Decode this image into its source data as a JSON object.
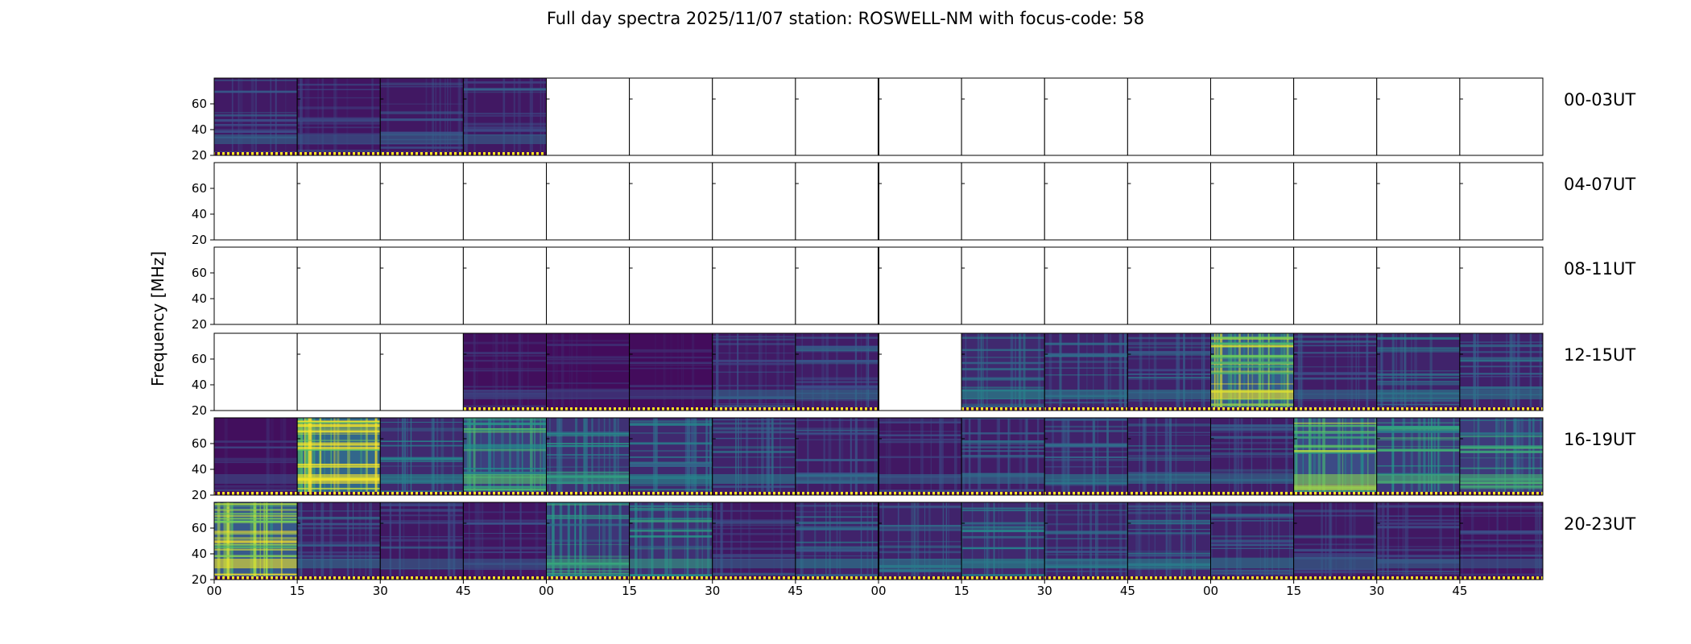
{
  "chart_data": {
    "type": "heatmap",
    "title": "Full day spectra 2025/11/07 station: ROSWELL-NM with focus-code: 58",
    "ylabel": "Frequency [MHz]",
    "xlabel": "",
    "y_ticks": [
      "20",
      "40",
      "60"
    ],
    "ylim": [
      20,
      80
    ],
    "x_ticks": [
      "00",
      "15",
      "30",
      "45",
      "00",
      "15",
      "30",
      "45",
      "00",
      "15",
      "30",
      "45",
      "00",
      "15",
      "30",
      "45"
    ],
    "colormap": [
      "#440154",
      "#3b528b",
      "#21918c",
      "#5ec962",
      "#fde725"
    ],
    "rows": [
      {
        "label": "00-03UT",
        "panels": [
          0.22,
          0.18,
          0.2,
          0.2,
          null,
          null,
          null,
          null,
          null,
          null,
          null,
          null,
          null,
          null,
          null,
          null
        ]
      },
      {
        "label": "04-07UT",
        "panels": [
          null,
          null,
          null,
          null,
          null,
          null,
          null,
          null,
          null,
          null,
          null,
          null,
          null,
          null,
          null,
          null
        ]
      },
      {
        "label": "08-11UT",
        "panels": [
          null,
          null,
          null,
          null,
          null,
          null,
          null,
          null,
          null,
          null,
          null,
          null,
          null,
          null,
          null,
          null
        ]
      },
      {
        "label": "12-15UT",
        "panels": [
          null,
          null,
          null,
          0.12,
          0.1,
          0.1,
          0.22,
          0.25,
          null,
          0.35,
          0.3,
          0.28,
          0.8,
          0.25,
          0.3,
          0.28
        ]
      },
      {
        "label": "16-19UT",
        "panels": [
          0.12,
          0.95,
          0.35,
          0.55,
          0.42,
          0.35,
          0.3,
          0.25,
          0.2,
          0.25,
          0.3,
          0.28,
          0.25,
          0.65,
          0.5,
          0.5
        ]
      },
      {
        "label": "20-23UT",
        "panels": [
          0.8,
          0.25,
          0.2,
          0.18,
          0.45,
          0.42,
          0.2,
          0.3,
          0.3,
          0.35,
          0.3,
          0.32,
          0.28,
          0.22,
          0.2,
          0.18
        ]
      }
    ]
  }
}
